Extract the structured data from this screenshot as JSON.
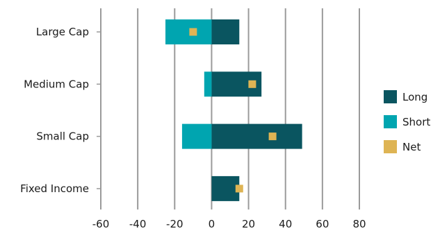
{
  "chart_data": {
    "type": "bar",
    "orientation": "horizontal",
    "categories": [
      "Large Cap",
      "Medium Cap",
      "Small Cap",
      "Fixed Income"
    ],
    "series": [
      {
        "name": "Long",
        "values": [
          15,
          27,
          49,
          15
        ],
        "color": "#0a5560",
        "mark": "bar"
      },
      {
        "name": "Short",
        "values": [
          -25,
          -4,
          -16,
          0
        ],
        "color": "#00a5b0",
        "mark": "bar"
      },
      {
        "name": "Net",
        "values": [
          -10,
          22,
          33,
          15
        ],
        "color": "#deb454",
        "mark": "square"
      }
    ],
    "xlim": [
      -60,
      80
    ],
    "xticks": [
      -60,
      -40,
      -20,
      0,
      20,
      40,
      60,
      80
    ],
    "xtick_labels": [
      "-60",
      "-40",
      "-20",
      "0",
      "20",
      "40",
      "60",
      "80"
    ],
    "grid": "vertical",
    "legend_position": "right",
    "title": "",
    "xlabel": "",
    "ylabel": ""
  }
}
